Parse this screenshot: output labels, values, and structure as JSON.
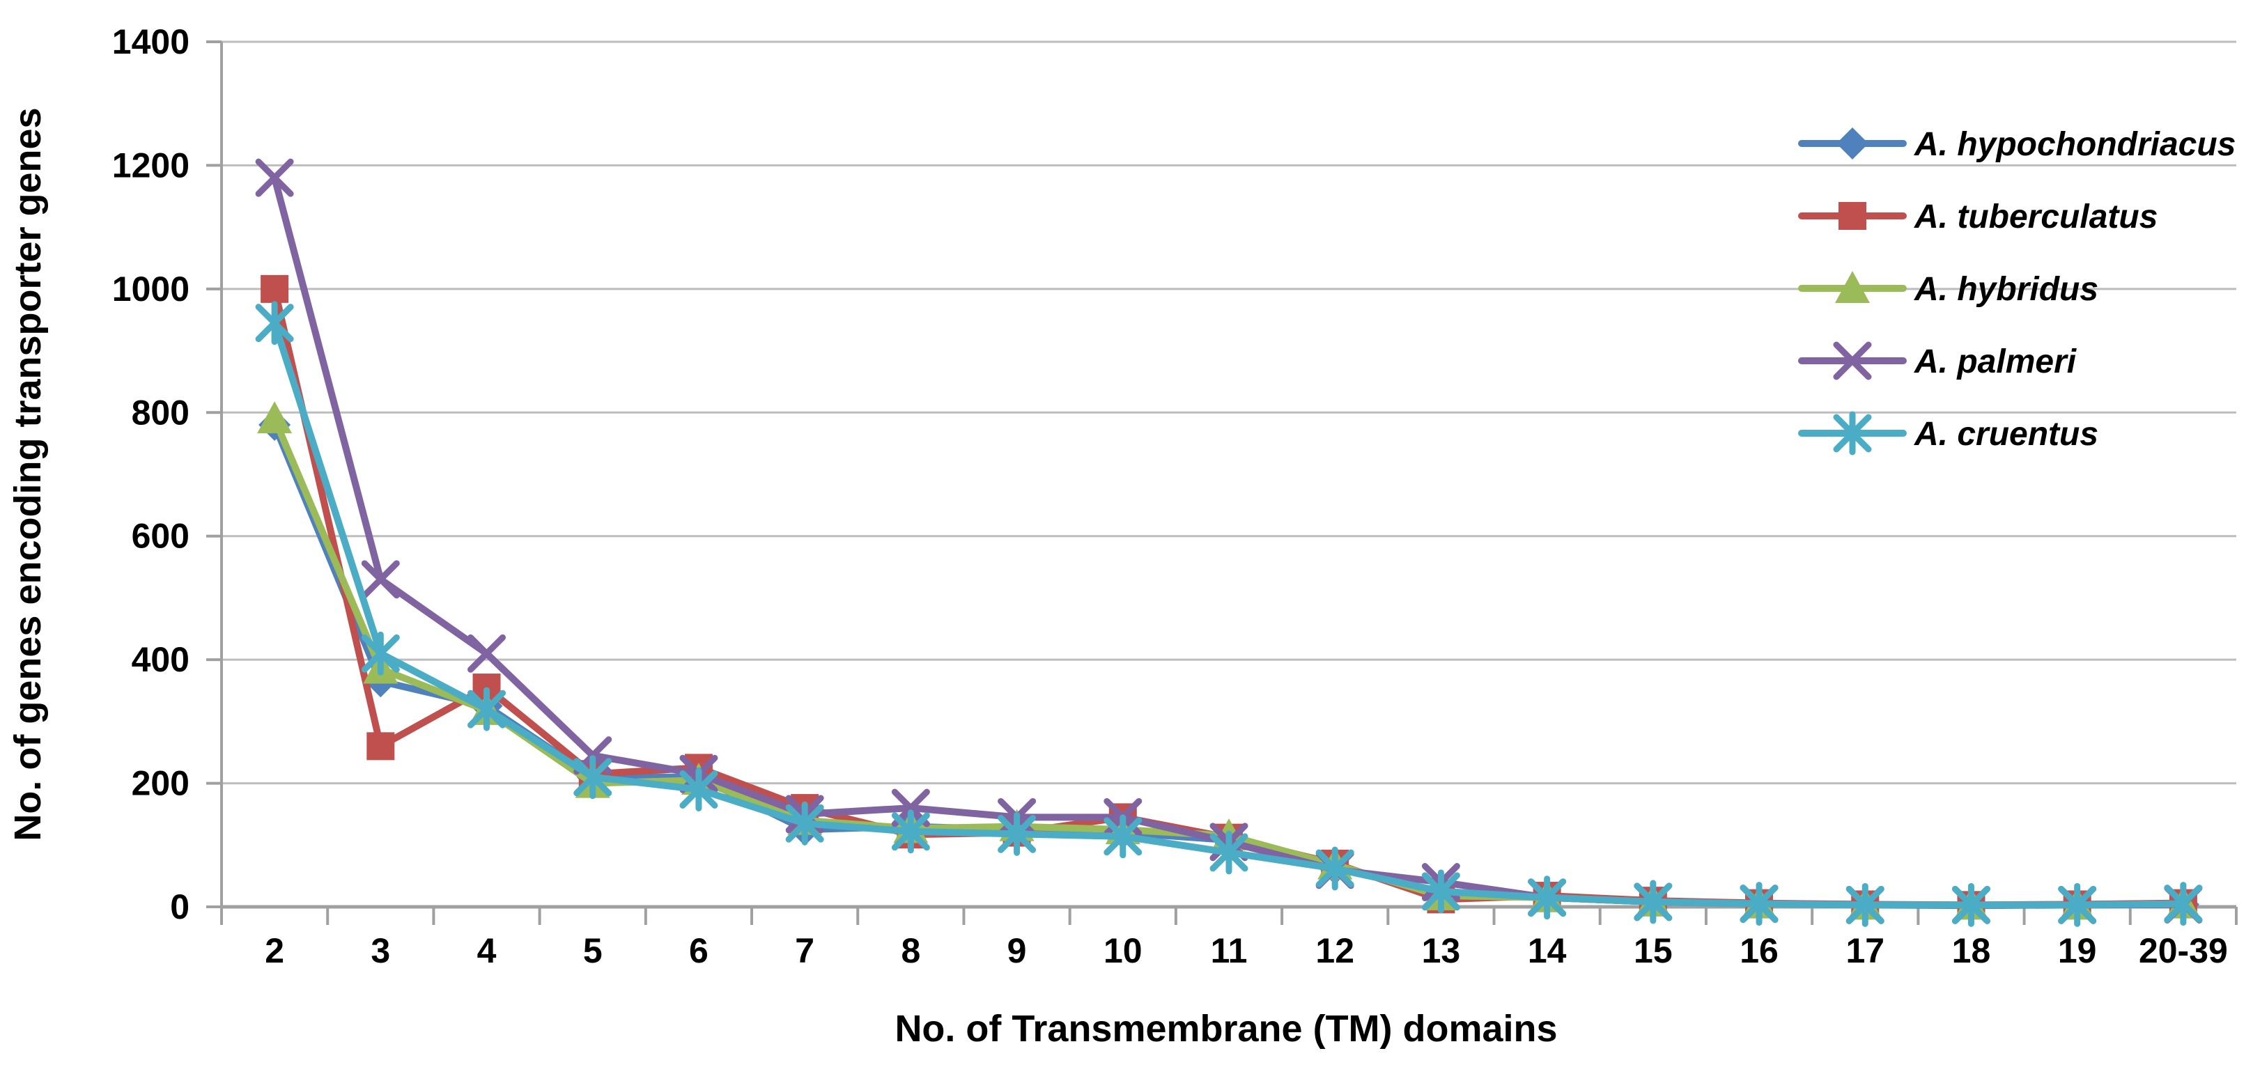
{
  "chart_data": {
    "type": "line",
    "title": "",
    "xlabel": "No. of Transmembrane (TM) domains",
    "ylabel": "No. of genes encoding transporter genes",
    "categories": [
      "2",
      "3",
      "4",
      "5",
      "6",
      "7",
      "8",
      "9",
      "10",
      "11",
      "12",
      "13",
      "14",
      "15",
      "16",
      "17",
      "18",
      "19",
      "20-39"
    ],
    "ylim": [
      0,
      1400
    ],
    "yticks": [
      0,
      200,
      400,
      600,
      800,
      1000,
      1200,
      1400
    ],
    "grid": "horizontal",
    "legend_position": "top-right-inside",
    "series": [
      {
        "name": "A. hypochondriacus",
        "marker": "diamond",
        "color": "#4F81BD",
        "values": [
          780,
          365,
          325,
          210,
          210,
          125,
          130,
          125,
          120,
          108,
          62,
          25,
          15,
          8,
          5,
          3,
          2,
          3,
          4
        ]
      },
      {
        "name": "A. tuberculatus",
        "marker": "square",
        "color": "#C0504D",
        "values": [
          1000,
          260,
          355,
          215,
          225,
          160,
          117,
          120,
          145,
          112,
          70,
          12,
          18,
          10,
          6,
          4,
          3,
          4,
          6
        ]
      },
      {
        "name": "A. hybridus",
        "marker": "triangle",
        "color": "#9BBB59",
        "values": [
          790,
          385,
          318,
          200,
          205,
          140,
          127,
          130,
          125,
          115,
          68,
          18,
          15,
          8,
          5,
          3,
          3,
          3,
          5
        ]
      },
      {
        "name": "A. palmeri",
        "marker": "x",
        "color": "#8064A2",
        "values": [
          1180,
          530,
          410,
          245,
          215,
          150,
          160,
          145,
          145,
          105,
          60,
          40,
          15,
          8,
          5,
          3,
          3,
          3,
          4
        ]
      },
      {
        "name": "A. cruentus",
        "marker": "asterisk",
        "color": "#4BACC6",
        "values": [
          945,
          410,
          320,
          210,
          190,
          135,
          122,
          118,
          114,
          88,
          62,
          25,
          15,
          8,
          5,
          3,
          3,
          3,
          5
        ]
      }
    ],
    "axis_color": "#A0A0A0",
    "gridline_color": "#BDBDBD",
    "text_color": "#000000"
  }
}
